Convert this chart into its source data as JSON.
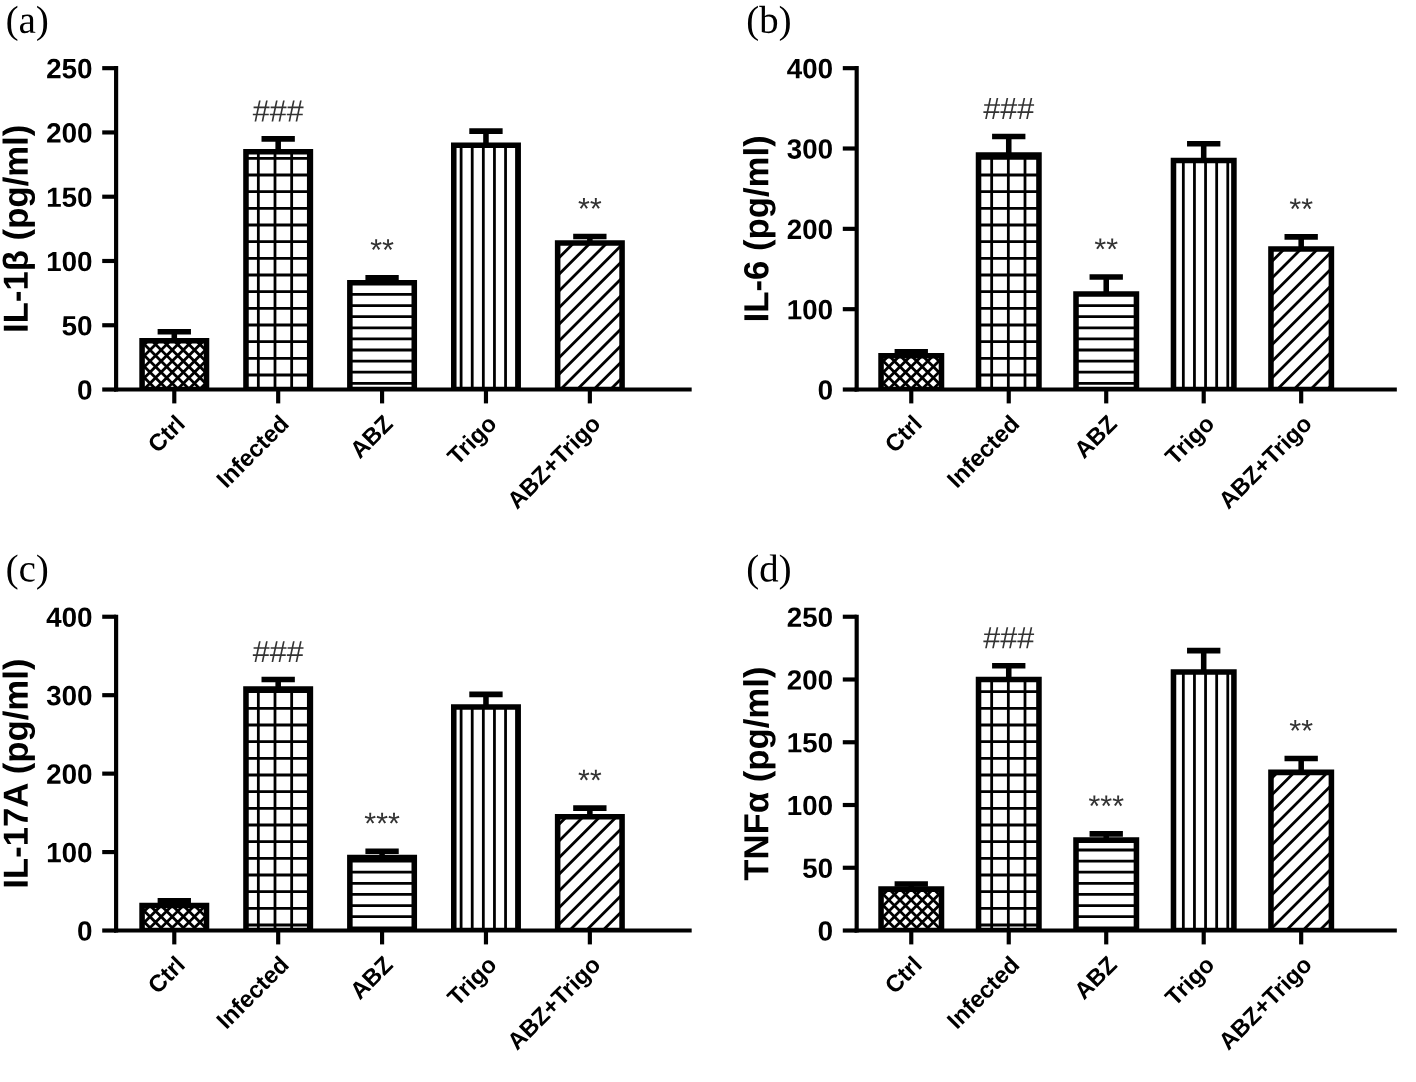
{
  "chart_data": [
    {
      "type": "bar",
      "title": "(a)",
      "ylabel": "IL-1β (pg/ml)",
      "categories": [
        "Ctrl",
        "Infected",
        "ABZ",
        "Trigo",
        "ABZ+Trigo"
      ],
      "values": [
        38,
        185,
        83,
        190,
        114
      ],
      "errors": [
        7,
        10,
        4,
        11,
        5
      ],
      "color": "#000000",
      "ylim": [
        0,
        250
      ],
      "yticks": [
        0,
        50,
        100,
        150,
        200,
        250
      ],
      "grid": false,
      "annotations": [
        {
          "text": "###",
          "x": "Infected",
          "y": 185
        },
        {
          "text": "**",
          "x": "ABZ",
          "y": 83
        },
        {
          "text": "**",
          "x": "ABZ+Trigo",
          "y": 114
        }
      ]
    },
    {
      "type": "bar",
      "title": "(b)",
      "ylabel": "IL-6 (pg/ml)",
      "categories": [
        "Ctrl",
        "Infected",
        "ABZ",
        "Trigo",
        "ABZ+Trigo"
      ],
      "values": [
        42,
        292,
        119,
        285,
        175
      ],
      "errors": [
        5,
        23,
        21,
        21,
        15
      ],
      "color": "#000000",
      "ylim": [
        0,
        400
      ],
      "yticks": [
        0,
        100,
        200,
        300,
        400
      ],
      "grid": false,
      "annotations": [
        {
          "text": "###",
          "x": "Infected",
          "y": 292
        },
        {
          "text": "**",
          "x": "ABZ",
          "y": 119
        },
        {
          "text": "**",
          "x": "ABZ+Trigo",
          "y": 175
        }
      ]
    },
    {
      "type": "bar",
      "title": "(c)",
      "ylabel": "IL-17A (pg/ml)",
      "categories": [
        "Ctrl",
        "Infected",
        "ABZ",
        "Trigo",
        "ABZ+Trigo"
      ],
      "values": [
        32,
        308,
        93,
        285,
        145
      ],
      "errors": [
        6,
        12,
        8,
        16,
        11
      ],
      "color": "#000000",
      "ylim": [
        0,
        400
      ],
      "yticks": [
        0,
        100,
        200,
        300,
        400
      ],
      "grid": false,
      "annotations": [
        {
          "text": "###",
          "x": "Infected",
          "y": 308
        },
        {
          "text": "***",
          "x": "ABZ",
          "y": 93
        },
        {
          "text": "**",
          "x": "ABZ+Trigo",
          "y": 145
        }
      ]
    },
    {
      "type": "bar",
      "title": "(d)",
      "ylabel": "TNFα (pg/ml)",
      "categories": [
        "Ctrl",
        "Infected",
        "ABZ",
        "Trigo",
        "ABZ+Trigo"
      ],
      "values": [
        33,
        200,
        72,
        206,
        126
      ],
      "errors": [
        4,
        11,
        5,
        17,
        11
      ],
      "color": "#000000",
      "ylim": [
        0,
        250
      ],
      "yticks": [
        0,
        50,
        100,
        150,
        200,
        250
      ],
      "grid": false,
      "annotations": [
        {
          "text": "###",
          "x": "Infected",
          "y": 200
        },
        {
          "text": "***",
          "x": "ABZ",
          "y": 72
        },
        {
          "text": "**",
          "x": "ABZ+Trigo",
          "y": 126
        }
      ]
    }
  ]
}
